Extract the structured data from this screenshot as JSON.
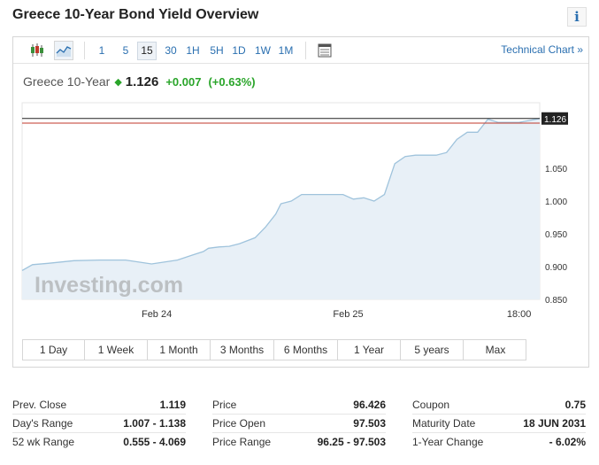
{
  "page": {
    "title": "Greece 10-Year Bond Yield Overview",
    "info_glyph": "i"
  },
  "toolbar": {
    "icons": [
      "candlestick-icon",
      "area-chart-icon",
      "table-icon"
    ],
    "intervals": [
      {
        "label": "1",
        "active": false
      },
      {
        "label": "5",
        "active": false
      },
      {
        "label": "15",
        "active": true
      },
      {
        "label": "30",
        "active": false
      },
      {
        "label": "1H",
        "active": false
      },
      {
        "label": "5H",
        "active": false
      },
      {
        "label": "1D",
        "active": false
      },
      {
        "label": "1W",
        "active": false
      },
      {
        "label": "1M",
        "active": false
      }
    ],
    "technical_chart_label": "Technical Chart »"
  },
  "quote": {
    "name": "Greece 10-Year",
    "direction_glyph": "◆",
    "last": "1.126",
    "change": "+0.007",
    "change_pct": "(+0.63%)"
  },
  "chart_data": {
    "type": "area",
    "x": [
      0,
      0.02,
      0.05,
      0.1,
      0.15,
      0.2,
      0.25,
      0.3,
      0.33,
      0.35,
      0.36,
      0.38,
      0.4,
      0.42,
      0.45,
      0.47,
      0.49,
      0.5,
      0.52,
      0.54,
      0.56,
      0.58,
      0.6,
      0.62,
      0.64,
      0.66,
      0.68,
      0.7,
      0.72,
      0.74,
      0.76,
      0.78,
      0.8,
      0.82,
      0.84,
      0.86,
      0.88,
      0.9,
      0.92,
      0.94,
      0.96,
      0.98,
      1.0
    ],
    "y": [
      0.894,
      0.903,
      0.905,
      0.909,
      0.91,
      0.91,
      0.904,
      0.91,
      0.918,
      0.923,
      0.928,
      0.93,
      0.931,
      0.935,
      0.944,
      0.96,
      0.98,
      0.996,
      1.0,
      1.01,
      1.01,
      1.01,
      1.01,
      1.01,
      1.003,
      1.005,
      1.0,
      1.01,
      1.057,
      1.068,
      1.07,
      1.07,
      1.07,
      1.074,
      1.094,
      1.105,
      1.105,
      1.125,
      1.12,
      1.12,
      1.12,
      1.123,
      1.126
    ],
    "y_ticks": [
      "1.050",
      "1.000",
      "0.950",
      "0.900",
      "0.850"
    ],
    "y_tick_values": [
      1.05,
      1.0,
      0.95,
      0.9,
      0.85
    ],
    "x_ticks": [
      "Feb 24",
      "Feb 25",
      "18:00"
    ],
    "x_tick_positions": [
      0.26,
      0.63,
      0.96
    ],
    "ylim": [
      0.85,
      1.15
    ],
    "last_price_label": "1.126",
    "reference_line_value": 1.119,
    "watermark": "Investing.com",
    "colors": {
      "line": "#9fc3dc",
      "fill": "#e8f0f7",
      "last_line": "#222222",
      "ref_line": "#c0392b"
    }
  },
  "ranges": [
    {
      "label": "1 Day",
      "w": 70
    },
    {
      "label": "1 Week",
      "w": 71
    },
    {
      "label": "1 Month",
      "w": 71
    },
    {
      "label": "3 Months",
      "w": 72
    },
    {
      "label": "6 Months",
      "w": 72
    },
    {
      "label": "1 Year",
      "w": 71
    },
    {
      "label": "5 years",
      "w": 71
    },
    {
      "label": "Max",
      "w": 72
    }
  ],
  "stats": {
    "col1": [
      {
        "label": "Prev. Close",
        "value": "1.119"
      },
      {
        "label": "Day's Range",
        "value": "1.007 - 1.138"
      },
      {
        "label": "52 wk Range",
        "value": "0.555 - 4.069"
      }
    ],
    "col2": [
      {
        "label": "Price",
        "value": "96.426"
      },
      {
        "label": "Price Open",
        "value": "97.503"
      },
      {
        "label": "Price Range",
        "value": "96.25 - 97.503"
      }
    ],
    "col3": [
      {
        "label": "Coupon",
        "value": "0.75"
      },
      {
        "label": "Maturity Date",
        "value": "18 JUN 2031"
      },
      {
        "label": "1-Year Change",
        "value": "- 6.02%"
      }
    ]
  }
}
